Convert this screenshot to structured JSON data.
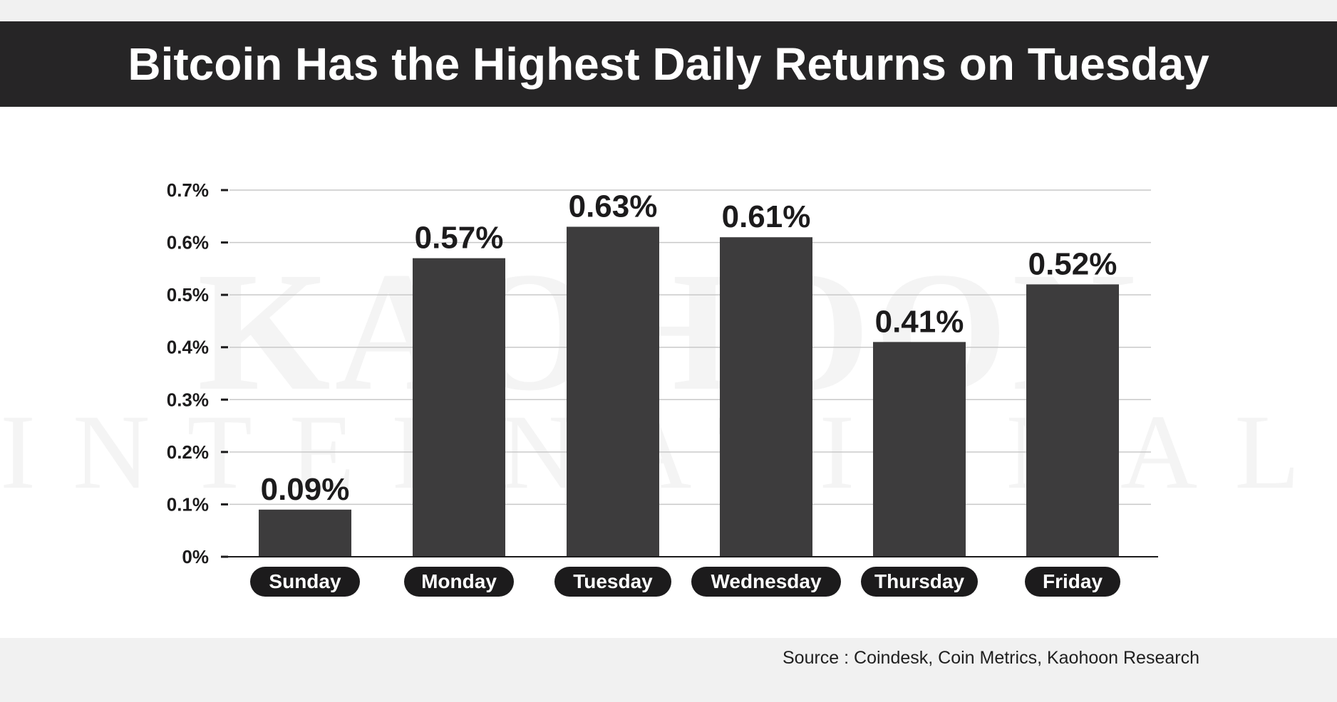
{
  "header": {
    "title": "Bitcoin Has the Highest Daily Returns on Tuesday"
  },
  "watermark": {
    "line1": "KAOHOON",
    "line2": "INTERNATIONAL"
  },
  "footer": {
    "source": "Source : Coindesk, Coin Metrics, Kaohoon Research"
  },
  "colors": {
    "bar": "#3d3c3d",
    "title_bar": "#262526",
    "pill": "#1c1b1c",
    "label": "#1c1b1c"
  },
  "chart_data": {
    "type": "bar",
    "title": "Bitcoin Has the Highest Daily Returns on Tuesday",
    "categories": [
      "Sunday",
      "Monday",
      "Tuesday",
      "Wednesday",
      "Thursday",
      "Friday"
    ],
    "values": [
      0.09,
      0.57,
      0.63,
      0.61,
      0.41,
      0.52
    ],
    "data_labels": [
      "0.09%",
      "0.57%",
      "0.63%",
      "0.61%",
      "0.41%",
      "0.52%"
    ],
    "yticks": [
      0,
      0.1,
      0.2,
      0.3,
      0.4,
      0.5,
      0.6,
      0.7
    ],
    "ytick_labels": [
      "0%",
      "0.1%",
      "0.2%",
      "0.3%",
      "0.4%",
      "0.5%",
      "0.6%",
      "0.7%"
    ],
    "ylim": [
      0,
      0.7
    ],
    "grid": true,
    "xlabel": "",
    "ylabel": ""
  }
}
